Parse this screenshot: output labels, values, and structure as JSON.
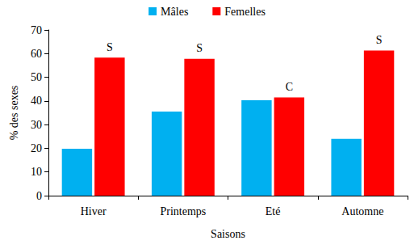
{
  "chart_data": {
    "type": "bar",
    "x_label": "Saisons",
    "y_label": "% des sexes",
    "categories": [
      "Hiver",
      "Printemps",
      "Eté",
      "Automne"
    ],
    "series": [
      {
        "name": "Mâles",
        "color": "#00b0f0",
        "values": [
          19.8,
          35.5,
          40.3,
          24.0
        ]
      },
      {
        "name": "Femelles",
        "color": "#ff0000",
        "values": [
          58.3,
          57.8,
          41.5,
          61.3
        ],
        "annotations": [
          "S",
          "S",
          "C",
          "S"
        ]
      }
    ],
    "ylim": [
      0,
      70
    ],
    "yticks": [
      0,
      10,
      20,
      30,
      40,
      50,
      60,
      70
    ],
    "grid": false,
    "legend": "top"
  }
}
